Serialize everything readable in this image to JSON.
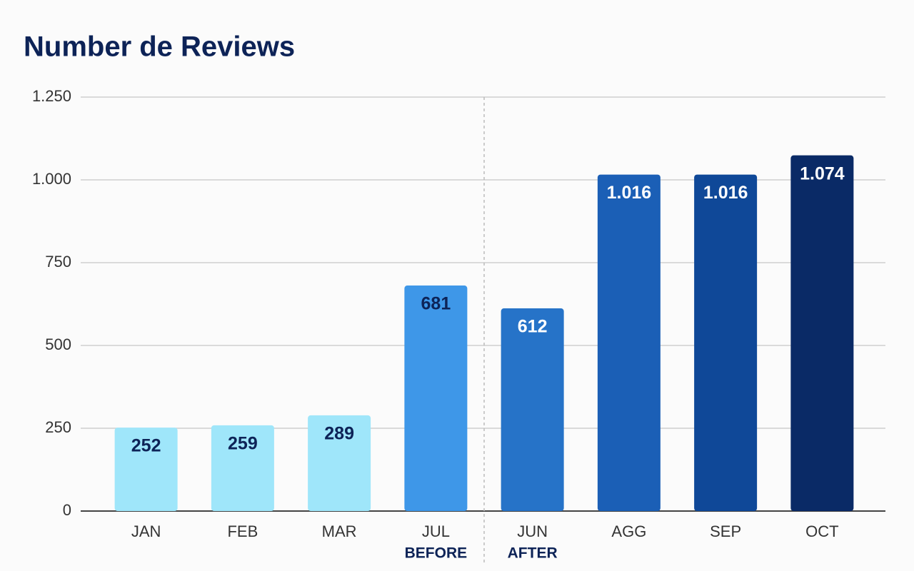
{
  "chart_data": {
    "type": "bar",
    "title": "Number de Reviews",
    "categories": [
      "JAN",
      "FEB",
      "MAR",
      "JUL",
      "JUN",
      "AGG",
      "SEP",
      "OCT"
    ],
    "values": [
      252,
      259,
      289,
      681,
      612,
      1016,
      1016,
      1074
    ],
    "value_labels": [
      "252",
      "259",
      "289",
      "681",
      "612",
      "1.016",
      "1.016",
      "1.074"
    ],
    "colors": [
      "#9fe6fa",
      "#9fe6fa",
      "#9fe6fa",
      "#3e97e8",
      "#2673c8",
      "#1b5fb6",
      "#0f4898",
      "#0a2a66"
    ],
    "label_colors": [
      "#0d2357",
      "#0d2357",
      "#0d2357",
      "#0d2357",
      "#ffffff",
      "#ffffff",
      "#ffffff",
      "#ffffff"
    ],
    "ylim": [
      0,
      1250
    ],
    "yticks": [
      0,
      250,
      500,
      750,
      {
        "value": 1000,
        "label": "1.000"
      },
      {
        "value": 1250,
        "label": "1.250"
      }
    ],
    "grid": true,
    "annotations": [
      {
        "text": "BEFORE",
        "at": "JUL"
      },
      {
        "text": "AFTER",
        "at": "JUN"
      }
    ]
  }
}
